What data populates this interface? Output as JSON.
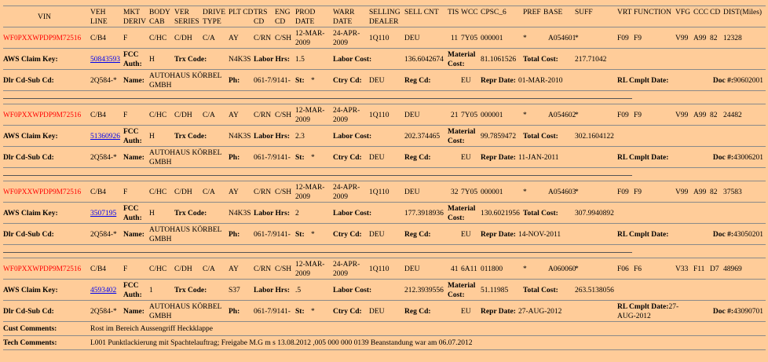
{
  "header": [
    "VIN",
    "VEH LINE",
    "MKT DERIV",
    "BODY CAB",
    "VER SERIES",
    "DRIVE TYPE",
    "PLT CD",
    "TRS CD",
    "ENG CD",
    "PROD DATE",
    "WARR DATE",
    "SELLING DEALER",
    "SELL CNT",
    "TIS",
    "WCC",
    "CPSC_6",
    "PREF",
    "BASE",
    "SUFF",
    "VRT",
    "FUNCTION",
    "VFG",
    "CCC",
    "CD",
    "DIST(Miles)"
  ],
  "labels": {
    "aws_claim_key": "AWS Claim Key:",
    "fcc_auth": "FCC Auth:",
    "trx_code": "Trx Code:",
    "labor_hrs": "Labor Hrs:",
    "labor_cost": "Labor Cost:",
    "material_cost": "Material Cost:",
    "total_cost": "Total Cost:",
    "dlr_cd": "Dlr Cd-Sub Cd:",
    "name": "Name:",
    "ph": "Ph:",
    "st": "St:",
    "ctry_cd": "Ctry Cd:",
    "reg_cd": "Reg Cd:",
    "repr_date": "Repr Date:",
    "rl_cmplt_date": "RL Cmplt Date:",
    "doc": "Doc #:",
    "cust_comments": "Cust Comments:",
    "tech_comments": "Tech Comments:"
  },
  "colors": {
    "background": "#FFCC99",
    "vin": "#FF0000",
    "link": "#0000EE"
  },
  "claims": [
    {
      "vin": "WF0PXXWPDP9M72516",
      "veh_line": "C/B4",
      "mkt_deriv": "F",
      "body_cab": "C/HC",
      "ver_series": "C/DH",
      "drive_type": "C/A",
      "plt_cd": "AY",
      "trs_cd": "C/RN",
      "eng_cd": "C/SH",
      "prod_date": "12-MAR-2009",
      "warr_date": "24-APR-2009",
      "selling_dealer": "1Q110",
      "sell_cnt": "DEU",
      "tis": "11",
      "wcc": "7Y05",
      "cpsc_6": "000001",
      "pref": "*",
      "base": "A054601",
      "suff": "*",
      "vrt": "F09",
      "function": "F9",
      "vfg": "V99",
      "ccc": "A99",
      "cd": "82",
      "dist": "12328",
      "claim_key": "50843593",
      "fcc_auth": "H",
      "trx_code": "N4K3S",
      "labor_hrs": "1.5",
      "labor_cost": "136.6042674",
      "material_cost": "81.1061526",
      "total_cost": "217.71042",
      "dlr_cd": "2Q584-*",
      "name": "AUTOHAUS KÖRBEL GMBH",
      "ph": "061-7/9141-",
      "st": "*",
      "ctry_cd": "DEU",
      "reg_cd": "EU",
      "repr_date": "01-MAR-2010",
      "rl_cmplt_date": "",
      "doc": "90602001"
    },
    {
      "vin": "WF0PXXWPDP9M72516",
      "veh_line": "C/B4",
      "mkt_deriv": "F",
      "body_cab": "C/HC",
      "ver_series": "C/DH",
      "drive_type": "C/A",
      "plt_cd": "AY",
      "trs_cd": "C/RN",
      "eng_cd": "C/SH",
      "prod_date": "12-MAR-2009",
      "warr_date": "24-APR-2009",
      "selling_dealer": "1Q110",
      "sell_cnt": "DEU",
      "tis": "21",
      "wcc": "7Y05",
      "cpsc_6": "000001",
      "pref": "*",
      "base": "A054602",
      "suff": "*",
      "vrt": "F09",
      "function": "F9",
      "vfg": "V99",
      "ccc": "A99",
      "cd": "82",
      "dist": "24482",
      "claim_key": "51360926",
      "fcc_auth": "H",
      "trx_code": "N4K3S",
      "labor_hrs": "2.3",
      "labor_cost": "202.374465",
      "material_cost": "99.7859472",
      "total_cost": "302.1604122",
      "dlr_cd": "2Q584-*",
      "name": "AUTOHAUS KÖRBEL GMBH",
      "ph": "061-7/9141-",
      "st": "*",
      "ctry_cd": "DEU",
      "reg_cd": "EU",
      "repr_date": "11-JAN-2011",
      "rl_cmplt_date": "",
      "doc": "43006201"
    },
    {
      "vin": "WF0PXXWPDP9M72516",
      "veh_line": "C/B4",
      "mkt_deriv": "F",
      "body_cab": "C/HC",
      "ver_series": "C/DH",
      "drive_type": "C/A",
      "plt_cd": "AY",
      "trs_cd": "C/RN",
      "eng_cd": "C/SH",
      "prod_date": "12-MAR-2009",
      "warr_date": "24-APR-2009",
      "selling_dealer": "1Q110",
      "sell_cnt": "DEU",
      "tis": "32",
      "wcc": "7Y05",
      "cpsc_6": "000001",
      "pref": "*",
      "base": "A054603",
      "suff": "*",
      "vrt": "F09",
      "function": "F9",
      "vfg": "V99",
      "ccc": "A99",
      "cd": "82",
      "dist": "37583",
      "claim_key": "3507195",
      "fcc_auth": "H",
      "trx_code": "N4K3S",
      "labor_hrs": "2",
      "labor_cost": "177.3918936",
      "material_cost": "130.6021956",
      "total_cost": "307.9940892",
      "dlr_cd": "2Q584-*",
      "name": "AUTOHAUS KÖRBEL GMBH",
      "ph": "061-7/9141-",
      "st": "*",
      "ctry_cd": "DEU",
      "reg_cd": "EU",
      "repr_date": "14-NOV-2011",
      "rl_cmplt_date": "",
      "doc": "43050201"
    },
    {
      "vin": "WF0PXXWPDP9M72516",
      "veh_line": "C/B4",
      "mkt_deriv": "F",
      "body_cab": "C/HC",
      "ver_series": "C/DH",
      "drive_type": "C/A",
      "plt_cd": "AY",
      "trs_cd": "C/RN",
      "eng_cd": "C/SH",
      "prod_date": "12-MAR-2009",
      "warr_date": "24-APR-2009",
      "selling_dealer": "1Q110",
      "sell_cnt": "DEU",
      "tis": "41",
      "wcc": "6A11",
      "cpsc_6": "011800",
      "pref": "*",
      "base": "A060060",
      "suff": "*",
      "vrt": "F06",
      "function": "F6",
      "vfg": "V33",
      "ccc": "F11",
      "cd": "D7",
      "dist": "48969",
      "claim_key": "4593402",
      "fcc_auth": "1",
      "trx_code": "S37",
      "labor_hrs": ".5",
      "labor_cost": "212.3939556",
      "material_cost": "51.11985",
      "total_cost": "263.5138056",
      "dlr_cd": "2Q584-*",
      "name": "AUTOHAUS KÖRBEL GMBH",
      "ph": "061-7/9141-",
      "st": "*",
      "ctry_cd": "DEU",
      "reg_cd": "EU",
      "repr_date": "27-AUG-2012",
      "rl_cmplt_date": "27-AUG-2012",
      "doc": "43090701",
      "cust_comments": "Rost im Bereich Aussengriff Heckklappe",
      "tech_comments": "L001 Punktlackierung mit Spachtelauftrag; Freigabe M.G m s 13.08.2012 ,005 000 000 0139 Beanstandung war am 06.07.2012"
    }
  ]
}
